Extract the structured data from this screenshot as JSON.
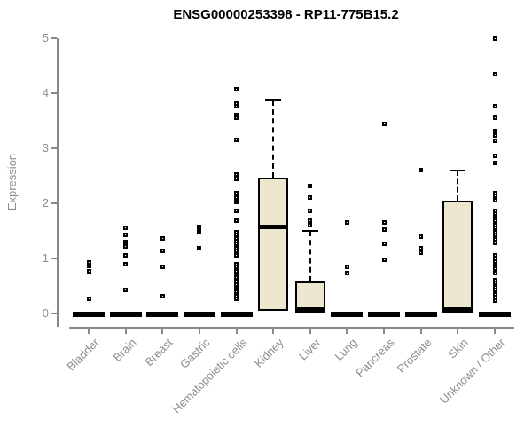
{
  "title": "ENSG00000253398 - RP11-775B15.2",
  "y_axis": {
    "label": "Expression"
  },
  "colors": {
    "axis": "#888888",
    "tick_label": "#8c8c8c",
    "title": "#000000",
    "box_fill": "#ece7ce",
    "box_border": "#000000",
    "median": "#000000",
    "outlier": "#000000"
  },
  "chart_data": {
    "type": "boxplot",
    "title": "ENSG00000253398 - RP11-775B15.2",
    "xlabel": "",
    "ylabel": "Expression",
    "ylim": [
      0,
      5
    ],
    "yticks": [
      0,
      1,
      2,
      3,
      4,
      5
    ],
    "grid": false,
    "legend": null,
    "box_fill": "#ece7ce",
    "categories": [
      "Bladder",
      "Brain",
      "Breast",
      "Gastric",
      "Hematopoietic cells",
      "Kidney",
      "Liver",
      "Lung",
      "Pancreas",
      "Prostate",
      "Skin",
      "Unknown / Other"
    ],
    "series": [
      {
        "category": "Bladder",
        "q1": 0,
        "median": 0,
        "q3": 0,
        "whisker_low": 0,
        "whisker_high": 0,
        "outliers": [
          0.93,
          0.86,
          0.76,
          0.27
        ]
      },
      {
        "category": "Brain",
        "q1": 0,
        "median": 0,
        "q3": 0,
        "whisker_low": 0,
        "whisker_high": 0,
        "outliers": [
          1.55,
          1.42,
          1.3,
          1.21,
          1.06,
          0.9,
          0.43
        ]
      },
      {
        "category": "Breast",
        "q1": 0,
        "median": 0,
        "q3": 0,
        "whisker_low": 0,
        "whisker_high": 0,
        "outliers": [
          1.37,
          1.13,
          0.85,
          0.31
        ]
      },
      {
        "category": "Gastric",
        "q1": 0,
        "median": 0,
        "q3": 0,
        "whisker_low": 0,
        "whisker_high": 0,
        "outliers": [
          1.57,
          1.5,
          1.18
        ]
      },
      {
        "category": "Hematopoietic cells",
        "q1": 0,
        "median": 0,
        "q3": 0,
        "whisker_low": 0,
        "whisker_high": 0,
        "outliers": [
          4.08,
          3.82,
          3.76,
          3.61,
          3.55,
          3.16,
          2.53,
          2.44,
          2.19,
          2.11,
          2.03,
          1.87,
          1.69,
          1.47,
          1.42,
          1.37,
          1.31,
          1.26,
          1.19,
          1.13,
          1.06,
          0.9,
          0.84,
          0.77,
          0.71,
          0.65,
          0.58,
          0.52,
          0.45,
          0.39,
          0.32,
          0.26
        ]
      },
      {
        "category": "Kidney",
        "q1": 0.05,
        "median": 1.58,
        "q3": 2.47,
        "whisker_low": 0.05,
        "whisker_high": 3.87,
        "outliers": []
      },
      {
        "category": "Liver",
        "q1": 0,
        "median": 0.03,
        "q3": 0.58,
        "whisker_low": 0,
        "whisker_high": 1.5,
        "outliers": [
          2.31,
          2.1,
          1.87,
          1.69,
          1.6
        ]
      },
      {
        "category": "Lung",
        "q1": 0,
        "median": 0,
        "q3": 0,
        "whisker_low": 0,
        "whisker_high": 0,
        "outliers": [
          1.66,
          0.85,
          0.74
        ]
      },
      {
        "category": "Pancreas",
        "q1": 0,
        "median": 0,
        "q3": 0,
        "whisker_low": 0,
        "whisker_high": 0,
        "outliers": [
          3.44,
          1.66,
          1.53,
          1.26,
          0.97
        ]
      },
      {
        "category": "Prostate",
        "q1": 0,
        "median": 0,
        "q3": 0,
        "whisker_low": 0,
        "whisker_high": 0,
        "outliers": [
          2.6,
          1.4,
          1.18,
          1.1
        ]
      },
      {
        "category": "Skin",
        "q1": 0,
        "median": 0.03,
        "q3": 2.05,
        "whisker_low": 0,
        "whisker_high": 2.6,
        "outliers": []
      },
      {
        "category": "Unknown / Other",
        "q1": 0,
        "median": 0,
        "q3": 0,
        "whisker_low": 0,
        "whisker_high": 0,
        "outliers": [
          5.0,
          4.35,
          3.76,
          3.55,
          3.31,
          3.23,
          3.13,
          2.87,
          2.74,
          2.19,
          2.13,
          2.06,
          1.87,
          1.81,
          1.74,
          1.68,
          1.61,
          1.55,
          1.48,
          1.42,
          1.35,
          1.29,
          1.06,
          1.0,
          0.94,
          0.87,
          0.81,
          0.74,
          0.61,
          0.55,
          0.48,
          0.42,
          0.35,
          0.29,
          0.23
        ]
      }
    ]
  }
}
